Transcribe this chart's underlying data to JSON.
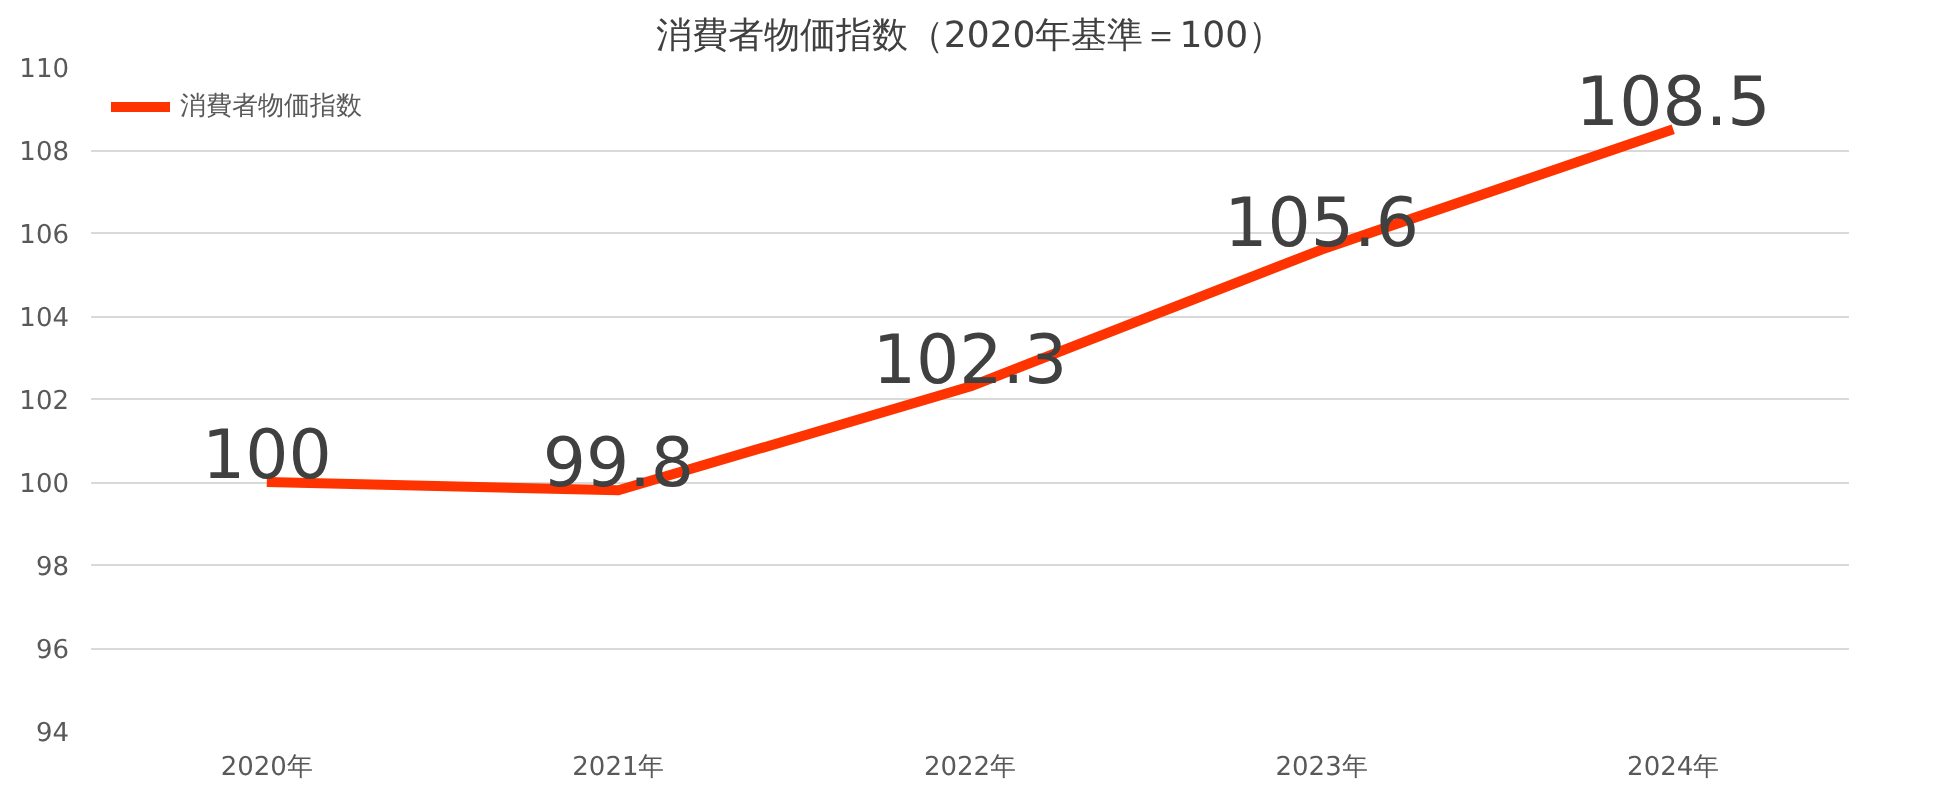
{
  "chart_data": {
    "type": "line",
    "title": "消費者物価指数（2020年基準＝100）",
    "categories": [
      "2020年",
      "2021年",
      "2022年",
      "2023年",
      "2024年"
    ],
    "series": [
      {
        "name": "消費者物価指数",
        "color": "#ff3300",
        "values": [
          100,
          99.8,
          102.3,
          105.6,
          108.5
        ]
      }
    ],
    "ylim": [
      94,
      110
    ],
    "yticks": [
      94,
      96,
      98,
      100,
      102,
      104,
      106,
      108,
      110
    ],
    "grid": "y",
    "legend": "top left",
    "data_labels": true,
    "marker": "none",
    "line_style": "solid"
  }
}
